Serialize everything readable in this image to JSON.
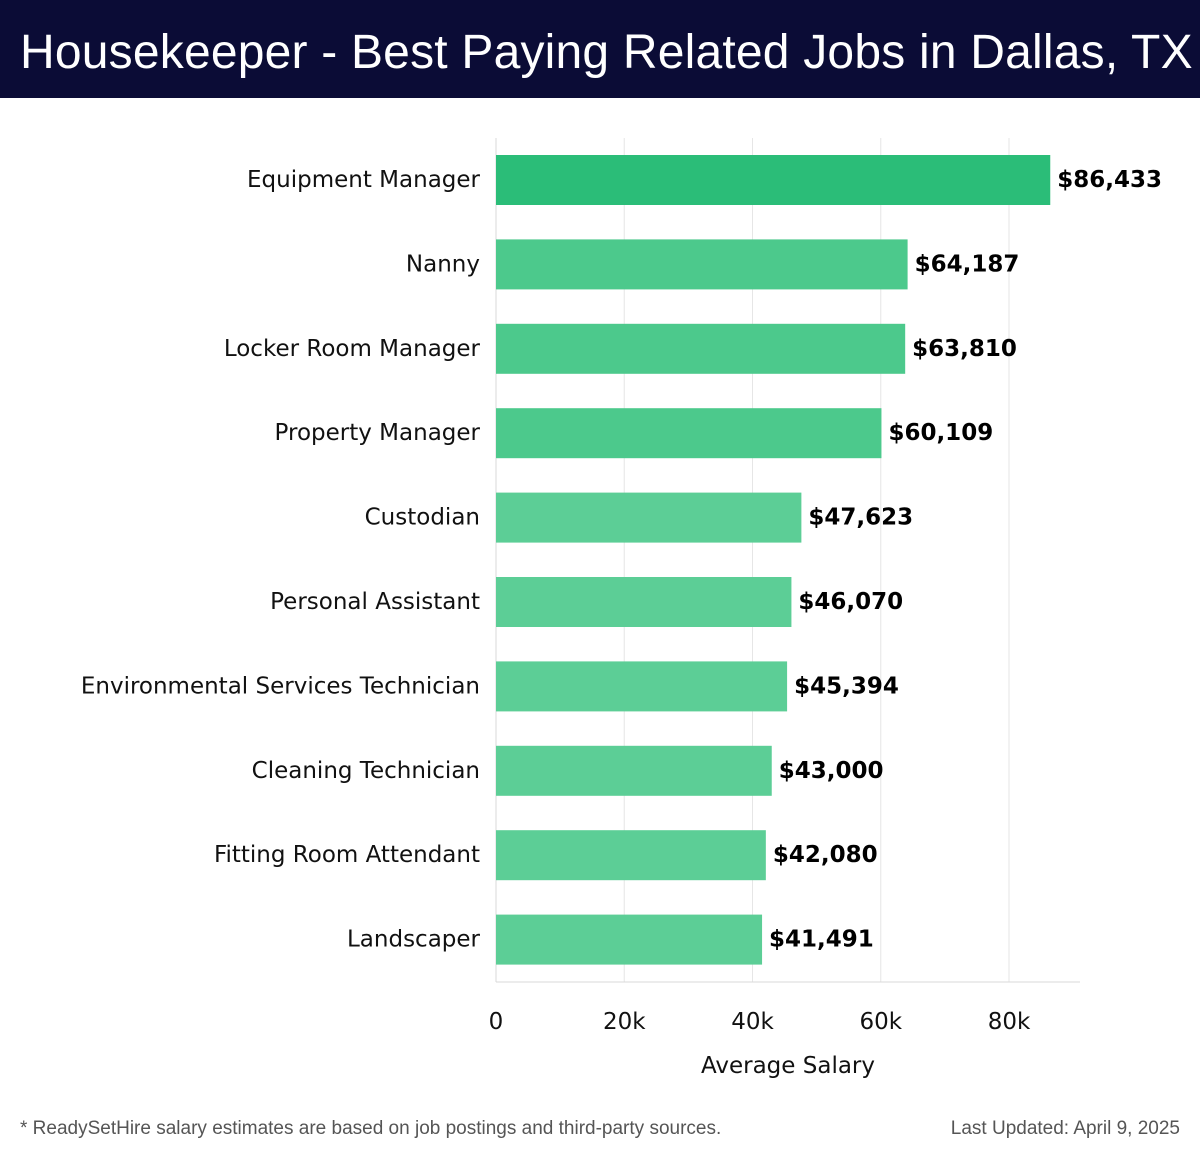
{
  "title": "Housekeeper - Best Paying Related Jobs in Dallas, TX",
  "footnote": "* ReadySetHire salary estimates are based on job postings and third-party sources.",
  "last_updated": "Last Updated: April 9, 2025",
  "colors": {
    "header_bg": "#0b0c36",
    "bar_top": "#2bbd78",
    "bar": "#4cc98c",
    "bar_light": "#5cce96",
    "grid": "#e6e6e6"
  },
  "chart_data": {
    "type": "bar",
    "orientation": "horizontal",
    "title": "Housekeeper - Best Paying Related Jobs in Dallas, TX",
    "xlabel": "Average Salary",
    "ylabel": "",
    "xlim": [
      0,
      90000
    ],
    "xticks": [
      0,
      20000,
      40000,
      60000,
      80000
    ],
    "xtick_labels": [
      "0",
      "20k",
      "40k",
      "60k",
      "80k"
    ],
    "grid": true,
    "categories": [
      "Equipment Manager",
      "Nanny",
      "Locker Room Manager",
      "Property Manager",
      "Custodian",
      "Personal Assistant",
      "Environmental Services Technician",
      "Cleaning Technician",
      "Fitting Room Attendant",
      "Landscaper"
    ],
    "values": [
      86433,
      64187,
      63810,
      60109,
      47623,
      46070,
      45394,
      43000,
      42080,
      41491
    ],
    "value_labels": [
      "$86,433",
      "$64,187",
      "$63,810",
      "$60,109",
      "$47,623",
      "$46,070",
      "$45,394",
      "$43,000",
      "$42,080",
      "$41,491"
    ]
  }
}
